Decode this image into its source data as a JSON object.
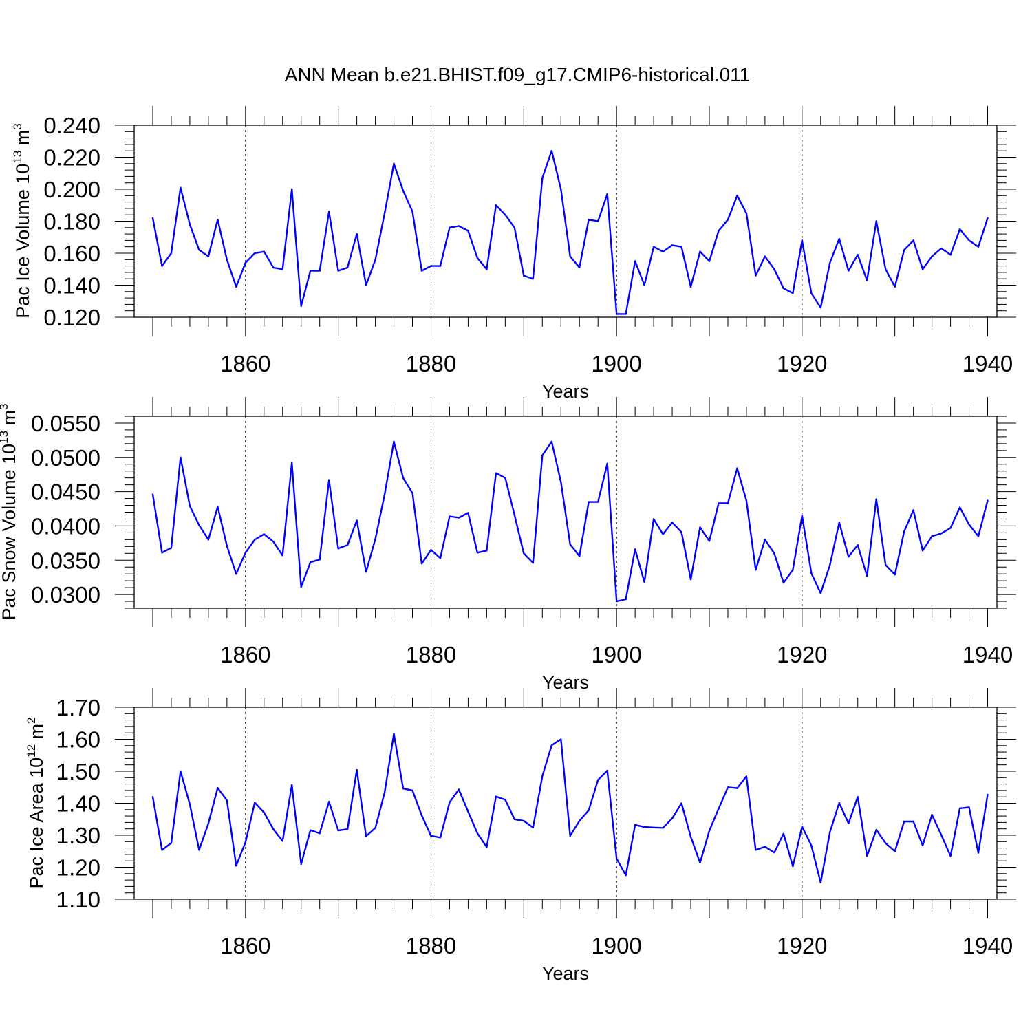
{
  "chart_data": {
    "type": "line",
    "title": "ANN Mean b.e21.BHIST.f09_g17.CMIP6-historical.011",
    "panels": [
      {
        "name": "ice-volume",
        "ylabel": "Pac Ice Volume 10",
        "ylabel_exp": "13",
        "ylabel_unit": " m",
        "ylabel_unit_exp": "3",
        "xlabel": "Years",
        "xlim": [
          1848,
          1941
        ],
        "ylim": [
          0.12,
          0.24
        ],
        "yticks": [
          0.12,
          0.14,
          0.16,
          0.18,
          0.2,
          0.22,
          0.24
        ],
        "ytick_labels": [
          "0.120",
          "0.140",
          "0.160",
          "0.180",
          "0.200",
          "0.220",
          "0.240"
        ],
        "xticks": [
          1860,
          1880,
          1900,
          1920,
          1940
        ],
        "xtick_labels": [
          "1860",
          "1880",
          "1900",
          "1920",
          "1940"
        ],
        "years": [
          1850,
          1851,
          1852,
          1853,
          1854,
          1855,
          1856,
          1857,
          1858,
          1859,
          1860,
          1861,
          1862,
          1863,
          1864,
          1865,
          1866,
          1867,
          1868,
          1869,
          1870,
          1871,
          1872,
          1873,
          1874,
          1875,
          1876,
          1877,
          1878,
          1879,
          1880,
          1881,
          1882,
          1883,
          1884,
          1885,
          1886,
          1887,
          1888,
          1889,
          1890,
          1891,
          1892,
          1893,
          1894,
          1895,
          1896,
          1897,
          1898,
          1899,
          1900,
          1901,
          1902,
          1903,
          1904,
          1905,
          1906,
          1907,
          1908,
          1909,
          1910,
          1911,
          1912,
          1913,
          1914,
          1915,
          1916,
          1917,
          1918,
          1919,
          1920,
          1921,
          1922,
          1923,
          1924,
          1925,
          1926,
          1927,
          1928,
          1929,
          1930,
          1931,
          1932,
          1933,
          1934,
          1935,
          1936,
          1937,
          1938,
          1939,
          1940
        ],
        "values": [
          0.182,
          0.152,
          0.16,
          0.201,
          0.178,
          0.162,
          0.158,
          0.181,
          0.156,
          0.139,
          0.154,
          0.16,
          0.161,
          0.151,
          0.15,
          0.2,
          0.127,
          0.149,
          0.149,
          0.186,
          0.149,
          0.151,
          0.172,
          0.14,
          0.156,
          0.185,
          0.216,
          0.199,
          0.186,
          0.149,
          0.152,
          0.152,
          0.176,
          0.177,
          0.174,
          0.157,
          0.15,
          0.19,
          0.184,
          0.176,
          0.146,
          0.144,
          0.207,
          0.224,
          0.2,
          0.158,
          0.151,
          0.181,
          0.18,
          0.197,
          0.122,
          0.122,
          0.155,
          0.14,
          0.164,
          0.161,
          0.165,
          0.164,
          0.139,
          0.161,
          0.155,
          0.174,
          0.181,
          0.196,
          0.185,
          0.146,
          0.158,
          0.15,
          0.138,
          0.135,
          0.168,
          0.135,
          0.126,
          0.154,
          0.169,
          0.149,
          0.159,
          0.143,
          0.18,
          0.15,
          0.139,
          0.162,
          0.168,
          0.15,
          0.158,
          0.163,
          0.159,
          0.175,
          0.168,
          0.164,
          0.182
        ]
      },
      {
        "name": "snow-volume",
        "ylabel": "Pac Snow Volume 10",
        "ylabel_exp": "13",
        "ylabel_unit": " m",
        "ylabel_unit_exp": "3",
        "xlabel": "Years",
        "xlim": [
          1848,
          1941
        ],
        "ylim": [
          0.028,
          0.056
        ],
        "yticks": [
          0.03,
          0.035,
          0.04,
          0.045,
          0.05,
          0.055
        ],
        "ytick_labels": [
          "0.0300",
          "0.0350",
          "0.0400",
          "0.0450",
          "0.0500",
          "0.0550"
        ],
        "xticks": [
          1860,
          1880,
          1900,
          1920,
          1940
        ],
        "xtick_labels": [
          "1860",
          "1880",
          "1900",
          "1920",
          "1940"
        ],
        "years": [
          1850,
          1851,
          1852,
          1853,
          1854,
          1855,
          1856,
          1857,
          1858,
          1859,
          1860,
          1861,
          1862,
          1863,
          1864,
          1865,
          1866,
          1867,
          1868,
          1869,
          1870,
          1871,
          1872,
          1873,
          1874,
          1875,
          1876,
          1877,
          1878,
          1879,
          1880,
          1881,
          1882,
          1883,
          1884,
          1885,
          1886,
          1887,
          1888,
          1889,
          1890,
          1891,
          1892,
          1893,
          1894,
          1895,
          1896,
          1897,
          1898,
          1899,
          1900,
          1901,
          1902,
          1903,
          1904,
          1905,
          1906,
          1907,
          1908,
          1909,
          1910,
          1911,
          1912,
          1913,
          1914,
          1915,
          1916,
          1917,
          1918,
          1919,
          1920,
          1921,
          1922,
          1923,
          1924,
          1925,
          1926,
          1927,
          1928,
          1929,
          1930,
          1931,
          1932,
          1933,
          1934,
          1935,
          1936,
          1937,
          1938,
          1939,
          1940
        ],
        "values": [
          0.0446,
          0.0361,
          0.0368,
          0.05,
          0.0429,
          0.0401,
          0.038,
          0.0428,
          0.0371,
          0.033,
          0.0361,
          0.038,
          0.0388,
          0.0377,
          0.0357,
          0.0492,
          0.0311,
          0.0347,
          0.0351,
          0.0467,
          0.0367,
          0.0372,
          0.0408,
          0.0333,
          0.0381,
          0.0446,
          0.0523,
          0.047,
          0.0448,
          0.0345,
          0.0365,
          0.0353,
          0.0414,
          0.0412,
          0.0419,
          0.0361,
          0.0364,
          0.0477,
          0.047,
          0.0416,
          0.036,
          0.0346,
          0.0503,
          0.0523,
          0.0464,
          0.0373,
          0.0356,
          0.0435,
          0.0435,
          0.0491,
          0.029,
          0.0293,
          0.0366,
          0.0318,
          0.041,
          0.0388,
          0.0405,
          0.0391,
          0.0322,
          0.0398,
          0.0378,
          0.0433,
          0.0433,
          0.0484,
          0.0437,
          0.0336,
          0.038,
          0.036,
          0.0317,
          0.0336,
          0.0415,
          0.0331,
          0.0302,
          0.0343,
          0.0405,
          0.0355,
          0.0372,
          0.0327,
          0.0439,
          0.0343,
          0.0329,
          0.0392,
          0.0423,
          0.0364,
          0.0385,
          0.0389,
          0.0397,
          0.0427,
          0.0402,
          0.0385,
          0.0437
        ]
      },
      {
        "name": "ice-area",
        "ylabel": "Pac Ice Area 10",
        "ylabel_exp": "12",
        "ylabel_unit": " m",
        "ylabel_unit_exp": "2",
        "xlabel": "Years",
        "xlim": [
          1848,
          1941
        ],
        "ylim": [
          1.1,
          1.7
        ],
        "yticks": [
          1.1,
          1.2,
          1.3,
          1.4,
          1.5,
          1.6,
          1.7
        ],
        "ytick_labels": [
          "1.10",
          "1.20",
          "1.30",
          "1.40",
          "1.50",
          "1.60",
          "1.70"
        ],
        "xticks": [
          1860,
          1880,
          1900,
          1920,
          1940
        ],
        "xtick_labels": [
          "1860",
          "1880",
          "1900",
          "1920",
          "1940"
        ],
        "years": [
          1850,
          1851,
          1852,
          1853,
          1854,
          1855,
          1856,
          1857,
          1858,
          1859,
          1860,
          1861,
          1862,
          1863,
          1864,
          1865,
          1866,
          1867,
          1868,
          1869,
          1870,
          1871,
          1872,
          1873,
          1874,
          1875,
          1876,
          1877,
          1878,
          1879,
          1880,
          1881,
          1882,
          1883,
          1884,
          1885,
          1886,
          1887,
          1888,
          1889,
          1890,
          1891,
          1892,
          1893,
          1894,
          1895,
          1896,
          1897,
          1898,
          1899,
          1900,
          1901,
          1902,
          1903,
          1904,
          1905,
          1906,
          1907,
          1908,
          1909,
          1910,
          1911,
          1912,
          1913,
          1914,
          1915,
          1916,
          1917,
          1918,
          1919,
          1920,
          1921,
          1922,
          1923,
          1924,
          1925,
          1926,
          1927,
          1928,
          1929,
          1930,
          1931,
          1932,
          1933,
          1934,
          1935,
          1936,
          1937,
          1938,
          1939,
          1940
        ],
        "values": [
          1.42,
          1.254,
          1.276,
          1.5,
          1.397,
          1.254,
          1.337,
          1.448,
          1.409,
          1.205,
          1.278,
          1.402,
          1.371,
          1.319,
          1.282,
          1.457,
          1.21,
          1.316,
          1.306,
          1.405,
          1.315,
          1.319,
          1.504,
          1.297,
          1.323,
          1.434,
          1.617,
          1.446,
          1.44,
          1.362,
          1.298,
          1.293,
          1.403,
          1.443,
          1.374,
          1.306,
          1.263,
          1.421,
          1.411,
          1.35,
          1.345,
          1.324,
          1.485,
          1.581,
          1.6,
          1.298,
          1.345,
          1.378,
          1.473,
          1.502,
          1.227,
          1.175,
          1.332,
          1.326,
          1.324,
          1.323,
          1.353,
          1.4,
          1.295,
          1.214,
          1.314,
          1.383,
          1.45,
          1.447,
          1.484,
          1.254,
          1.264,
          1.246,
          1.305,
          1.203,
          1.327,
          1.268,
          1.152,
          1.31,
          1.401,
          1.337,
          1.42,
          1.235,
          1.317,
          1.275,
          1.25,
          1.343,
          1.343,
          1.268,
          1.364,
          1.301,
          1.235,
          1.384,
          1.387,
          1.245,
          1.427
        ]
      }
    ]
  }
}
